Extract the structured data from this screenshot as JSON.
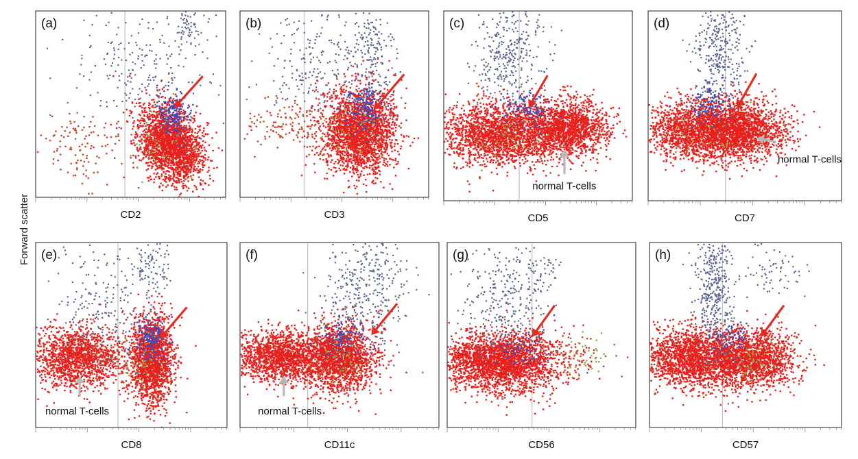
{
  "ylabel": "Forward scatter",
  "colors": {
    "main_population": "#e8201c",
    "dim_red": "#c84a30",
    "debris": "#5a6690",
    "blue": "#3a4ec0",
    "green": "#8ab04a",
    "gate_line": "#c4c4c4",
    "frame": "#444444",
    "arrow_red": "#e52a20",
    "arrow_gray": "#b8b8b8"
  },
  "chart_data": [
    {
      "type": "scatter",
      "panel": "(a)",
      "xlabel": "CD2",
      "annotations": []
    },
    {
      "type": "scatter",
      "panel": "(b)",
      "xlabel": "CD3",
      "annotations": []
    },
    {
      "type": "scatter",
      "panel": "(c)",
      "xlabel": "CD5",
      "annotations": [
        {
          "text": "normal T-cells"
        }
      ]
    },
    {
      "type": "scatter",
      "panel": "(d)",
      "xlabel": "CD7",
      "annotations": [
        {
          "text": "normal T-cells"
        }
      ]
    },
    {
      "type": "scatter",
      "panel": "(e)",
      "xlabel": "CD8",
      "annotations": [
        {
          "text": "normal T-cells"
        }
      ]
    },
    {
      "type": "scatter",
      "panel": "(f)",
      "xlabel": "CD11c",
      "annotations": [
        {
          "text": "normal T-cells"
        }
      ]
    },
    {
      "type": "scatter",
      "panel": "(g)",
      "xlabel": "CD56",
      "annotations": []
    },
    {
      "type": "scatter",
      "panel": "(h)",
      "xlabel": "CD57",
      "annotations": []
    }
  ]
}
